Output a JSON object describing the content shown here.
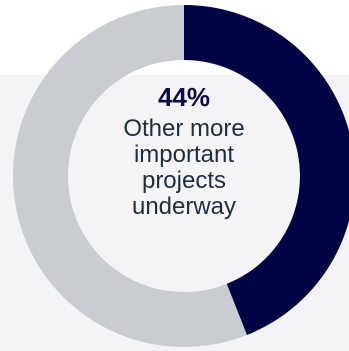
{
  "chart_data": {
    "type": "pie",
    "variant": "donut",
    "slices": [
      {
        "label": "Other more important projects underway",
        "value": 44,
        "color": "#020344"
      },
      {
        "label": "",
        "value": 56,
        "color": "#c9ccd0"
      }
    ],
    "center_label": {
      "value": "44%",
      "text": "Other more important projects underway"
    }
  }
}
